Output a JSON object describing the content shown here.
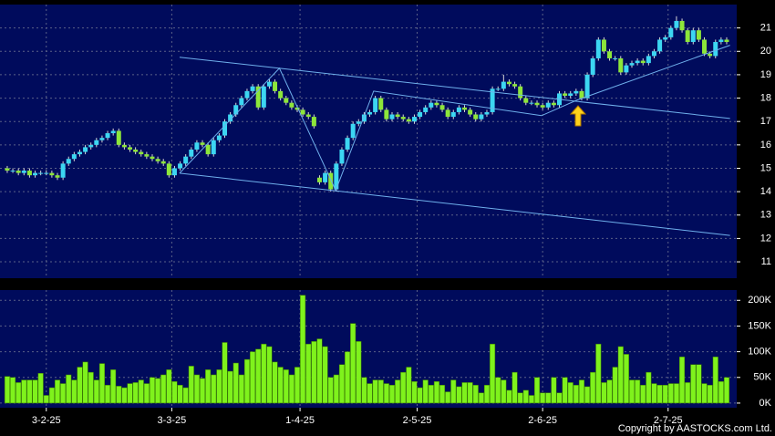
{
  "chart_data": [
    {
      "type": "candlestick",
      "open": [
        15.0,
        14.9,
        14.9,
        14.8,
        14.9,
        14.7,
        14.8,
        14.8,
        14.8,
        14.7,
        14.6,
        15.2,
        15.4,
        15.6,
        15.7,
        15.9,
        16.0,
        16.2,
        16.3,
        16.5,
        16.6,
        16.0,
        15.9,
        15.8,
        15.7,
        15.6,
        15.5,
        15.4,
        15.3,
        15.2,
        14.7,
        15.0,
        15.2,
        15.5,
        15.8,
        16.1,
        16.0,
        15.6,
        16.2,
        16.4,
        17.0,
        17.3,
        17.7,
        18.0,
        18.3,
        18.5,
        17.6,
        18.5,
        18.7,
        18.3,
        18.0,
        17.8,
        17.6,
        17.5,
        17.3,
        17.2,
        14.6,
        14.4,
        14.8,
        14.1,
        15.2,
        15.8,
        16.3,
        16.9,
        17.0,
        17.3,
        17.4,
        18.0,
        17.5,
        17.1,
        17.3,
        17.2,
        17.1,
        17.0,
        17.2,
        17.4,
        17.6,
        17.8,
        17.7,
        17.5,
        17.2,
        17.4,
        17.6,
        17.5,
        17.3,
        17.1,
        17.3,
        17.4,
        18.4,
        18.4,
        18.7,
        18.6,
        18.5,
        18.0,
        17.8,
        17.8,
        17.7,
        17.6,
        17.8,
        17.7,
        18.2,
        18.1,
        18.2,
        18.3,
        18.0,
        19.0,
        19.7,
        20.5,
        20.0,
        19.7,
        19.7,
        19.1,
        19.4,
        19.5,
        19.6,
        19.5,
        19.8,
        20.0,
        20.5,
        20.6,
        21.0,
        21.3,
        20.9,
        20.4,
        20.9,
        20.5,
        19.9,
        19.8,
        20.4,
        20.5
      ],
      "high": [
        15.1,
        15.0,
        15.0,
        15.0,
        15.0,
        14.9,
        14.9,
        14.9,
        14.9,
        14.8,
        15.3,
        15.5,
        15.7,
        15.8,
        16.0,
        16.1,
        16.3,
        16.4,
        16.6,
        16.7,
        16.7,
        16.1,
        16.0,
        15.9,
        15.8,
        15.7,
        15.6,
        15.5,
        15.4,
        15.3,
        15.1,
        15.3,
        15.6,
        15.9,
        16.2,
        16.2,
        16.1,
        16.3,
        16.5,
        17.1,
        17.4,
        17.8,
        18.1,
        18.4,
        18.6,
        18.6,
        18.6,
        18.8,
        18.8,
        18.4,
        18.1,
        17.9,
        17.7,
        17.6,
        17.4,
        17.3,
        14.7,
        14.9,
        14.9,
        15.3,
        15.9,
        16.4,
        17.0,
        17.1,
        17.4,
        17.5,
        18.1,
        18.1,
        17.6,
        17.4,
        17.4,
        17.3,
        17.2,
        17.3,
        17.5,
        17.7,
        17.9,
        17.9,
        17.8,
        17.6,
        17.5,
        17.7,
        17.7,
        17.6,
        17.4,
        17.4,
        17.5,
        18.5,
        18.5,
        19.0,
        18.8,
        18.7,
        18.6,
        18.1,
        17.9,
        17.9,
        17.8,
        17.9,
        17.9,
        18.3,
        18.3,
        18.3,
        18.4,
        18.4,
        19.1,
        19.8,
        20.6,
        20.6,
        20.1,
        19.8,
        19.8,
        19.5,
        19.6,
        19.7,
        19.7,
        19.9,
        20.1,
        20.6,
        20.7,
        21.1,
        21.5,
        21.4,
        21.0,
        21.0,
        21.0,
        20.6,
        20.0,
        20.5,
        20.6,
        20.6
      ],
      "low": [
        14.8,
        14.8,
        14.7,
        14.7,
        14.6,
        14.6,
        14.7,
        14.7,
        14.6,
        14.5,
        14.5,
        15.1,
        15.3,
        15.5,
        15.6,
        15.8,
        15.9,
        16.1,
        16.2,
        16.4,
        15.9,
        15.8,
        15.7,
        15.6,
        15.5,
        15.4,
        15.3,
        15.2,
        15.1,
        14.6,
        14.6,
        14.9,
        15.1,
        15.4,
        15.7,
        15.9,
        15.5,
        15.5,
        16.1,
        16.3,
        16.9,
        17.2,
        17.6,
        17.9,
        18.2,
        17.5,
        17.5,
        18.4,
        18.2,
        17.9,
        17.7,
        17.5,
        17.4,
        17.2,
        17.1,
        16.7,
        14.3,
        14.3,
        14.0,
        14.0,
        15.1,
        15.7,
        16.2,
        16.8,
        16.9,
        17.2,
        17.3,
        17.4,
        17.0,
        17.0,
        17.1,
        17.0,
        16.9,
        16.9,
        17.1,
        17.3,
        17.5,
        17.6,
        17.4,
        17.1,
        17.1,
        17.3,
        17.4,
        17.2,
        17.0,
        17.0,
        17.2,
        17.3,
        18.3,
        18.3,
        18.5,
        18.4,
        17.9,
        17.7,
        17.7,
        17.6,
        17.5,
        17.5,
        17.6,
        17.6,
        18.0,
        18.0,
        18.1,
        17.9,
        17.9,
        18.9,
        19.6,
        19.9,
        19.6,
        19.6,
        19.0,
        19.0,
        19.3,
        19.4,
        19.4,
        19.4,
        19.7,
        19.9,
        20.4,
        20.5,
        20.9,
        20.8,
        20.3,
        20.3,
        20.4,
        19.8,
        19.7,
        19.7,
        20.3,
        20.3
      ],
      "close": [
        14.9,
        14.9,
        14.8,
        14.9,
        14.7,
        14.8,
        14.8,
        14.8,
        14.7,
        14.6,
        15.2,
        15.4,
        15.6,
        15.7,
        15.9,
        16.0,
        16.2,
        16.3,
        16.5,
        16.6,
        16.0,
        15.9,
        15.8,
        15.7,
        15.6,
        15.5,
        15.4,
        15.3,
        15.2,
        14.7,
        15.0,
        15.2,
        15.5,
        15.8,
        16.1,
        16.0,
        15.6,
        16.2,
        16.4,
        17.0,
        17.3,
        17.7,
        18.0,
        18.3,
        18.5,
        17.6,
        18.5,
        18.7,
        18.3,
        18.0,
        17.8,
        17.6,
        17.5,
        17.3,
        17.2,
        16.8,
        14.4,
        14.8,
        14.1,
        15.2,
        15.8,
        16.3,
        16.9,
        17.0,
        17.3,
        17.4,
        18.0,
        17.5,
        17.1,
        17.3,
        17.2,
        17.1,
        17.0,
        17.2,
        17.4,
        17.6,
        17.8,
        17.7,
        17.5,
        17.2,
        17.4,
        17.6,
        17.5,
        17.3,
        17.1,
        17.3,
        17.4,
        18.4,
        18.4,
        18.7,
        18.6,
        18.5,
        18.0,
        17.8,
        17.8,
        17.7,
        17.6,
        17.8,
        17.7,
        18.2,
        18.1,
        18.2,
        18.3,
        18.0,
        19.0,
        19.7,
        20.5,
        20.0,
        19.7,
        19.7,
        19.1,
        19.4,
        19.5,
        19.6,
        19.5,
        19.8,
        20.0,
        20.5,
        20.6,
        21.0,
        21.3,
        20.9,
        20.4,
        20.9,
        20.5,
        19.9,
        19.8,
        20.4,
        20.5,
        20.4
      ],
      "up_color": "#3cd6f2",
      "down_color": "#8de63a",
      "xlim": [
        -1.3,
        130.8
      ],
      "ylim": [
        10.3,
        22.0
      ],
      "yticks": [
        11,
        12,
        13,
        14,
        15,
        16,
        17,
        18,
        19,
        20,
        21
      ],
      "grid": true,
      "lines": [
        {
          "color": "#6fb0ec",
          "x": [
            30.9,
            129.6
          ],
          "y": [
            19.75,
            17.13
          ]
        },
        {
          "color": "#6fb0ec",
          "x": [
            30.9,
            129.6
          ],
          "y": [
            14.79,
            12.13
          ]
        },
        {
          "color": "#6fb0ec",
          "x": [
            30.9,
            48.8,
            58.9,
            65.7,
            95.8,
            102.1,
            129.6
          ],
          "y": [
            14.79,
            19.28,
            14.05,
            18.3,
            17.25,
            17.91,
            20.26
          ]
        }
      ]
    },
    {
      "type": "bar",
      "values": [
        52000,
        50000,
        40000,
        45000,
        45000,
        45000,
        58000,
        15000,
        30000,
        45000,
        38000,
        55000,
        45000,
        70000,
        80000,
        60000,
        45000,
        77000,
        35000,
        65000,
        33000,
        30000,
        38000,
        40000,
        45000,
        38000,
        50000,
        48000,
        55000,
        65000,
        42000,
        35000,
        30000,
        72000,
        55000,
        48000,
        65000,
        55000,
        65000,
        118000,
        62000,
        78000,
        55000,
        85000,
        100000,
        105000,
        115000,
        110000,
        80000,
        70000,
        65000,
        55000,
        70000,
        210000,
        115000,
        120000,
        125000,
        110000,
        50000,
        55000,
        75000,
        100000,
        155000,
        120000,
        50000,
        38000,
        45000,
        45000,
        38000,
        35000,
        45000,
        60000,
        70000,
        42000,
        30000,
        45000,
        35000,
        42000,
        35000,
        22000,
        45000,
        32000,
        40000,
        40000,
        35000,
        20000,
        35000,
        115000,
        50000,
        45000,
        25000,
        60000,
        20000,
        25000,
        15000,
        50000,
        20000,
        20000,
        50000,
        20000,
        50000,
        40000,
        35000,
        45000,
        32000,
        60000,
        115000,
        40000,
        45000,
        70000,
        110000,
        95000,
        45000,
        45000,
        35000,
        60000,
        38000,
        35000,
        35000,
        38000,
        38000,
        90000,
        40000,
        75000,
        75000,
        38000,
        35000,
        90000,
        42000,
        50000
      ],
      "color": "#7ff21c",
      "xlim": [
        -1.3,
        130.8
      ],
      "ylim": [
        -9000,
        220000
      ],
      "yticks": [
        {
          "value": 0,
          "label": "0K"
        },
        {
          "value": 50000,
          "label": "50K"
        },
        {
          "value": 100000,
          "label": "100K"
        },
        {
          "value": 150000,
          "label": "150K"
        },
        {
          "value": 200000,
          "label": "200K"
        }
      ],
      "xticks": [
        {
          "value": 7,
          "label": "3-2-25"
        },
        {
          "value": 29.5,
          "label": "3-3-25"
        },
        {
          "value": 52.5,
          "label": "1-4-25"
        },
        {
          "value": 73.5,
          "label": "2-5-25"
        },
        {
          "value": 96,
          "label": "2-6-25"
        },
        {
          "value": 118.5,
          "label": "2-7-25"
        }
      ],
      "grid": true
    }
  ],
  "copyright": "Copyright by AASTOCKS.com Ltd."
}
